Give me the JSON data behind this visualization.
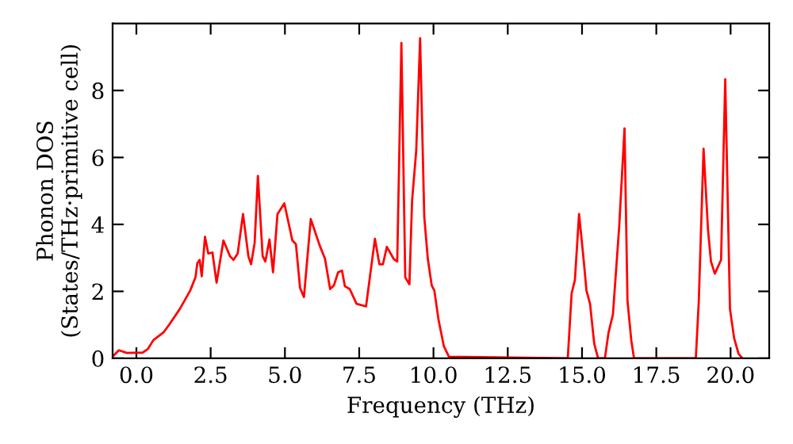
{
  "chart_data": {
    "type": "line",
    "xlabel": "Frequency (THz)",
    "ylabel": "Phonon DOS\n(States/THz·primitive cell)",
    "xlim": [
      -0.8,
      21.3
    ],
    "ylim": [
      0,
      10
    ],
    "xticks": [
      {
        "value": 0,
        "label": "0.0"
      },
      {
        "value": 2.5,
        "label": "2.5"
      },
      {
        "value": 5,
        "label": "5.0"
      },
      {
        "value": 7.5,
        "label": "7.5"
      },
      {
        "value": 10,
        "label": "10.0"
      },
      {
        "value": 12.5,
        "label": "12.5"
      },
      {
        "value": 15,
        "label": "15.0"
      },
      {
        "value": 17.5,
        "label": "17.5"
      },
      {
        "value": 20,
        "label": "20.0"
      }
    ],
    "yticks": [
      0,
      2,
      4,
      6,
      8
    ],
    "grid": false,
    "line_style": "solid",
    "marker": "none",
    "series": [
      {
        "color": "#ff0000",
        "x": [
          -0.8,
          -0.59,
          -0.32,
          0.21,
          0.39,
          0.57,
          0.93,
          1.1,
          1.46,
          1.81,
          1.99,
          2.05,
          2.13,
          2.2,
          2.31,
          2.42,
          2.56,
          2.7,
          2.93,
          3.15,
          3.27,
          3.41,
          3.59,
          3.77,
          3.86,
          3.98,
          4.09,
          4.25,
          4.34,
          4.48,
          4.6,
          4.75,
          4.98,
          5.25,
          5.37,
          5.51,
          5.64,
          5.87,
          6.17,
          6.35,
          6.52,
          6.65,
          6.79,
          6.92,
          7.02,
          7.18,
          7.41,
          7.73,
          8.03,
          8.18,
          8.3,
          8.43,
          8.66,
          8.78,
          8.92,
          9.05,
          9.19,
          9.28,
          9.42,
          9.55,
          9.69,
          9.81,
          9.94,
          10.03,
          10.17,
          10.35,
          10.52,
          14.52,
          14.65,
          14.76,
          14.9,
          15.06,
          15.15,
          15.27,
          15.41,
          15.54,
          15.77,
          15.89,
          16.04,
          16.25,
          16.43,
          16.53,
          16.66,
          16.75,
          18.83,
          18.93,
          19.09,
          19.24,
          19.34,
          19.47,
          19.68,
          19.82,
          19.98,
          20.12,
          20.27,
          20.4
        ],
        "values": [
          0.05,
          0.24,
          0.16,
          0.17,
          0.28,
          0.54,
          0.79,
          1.0,
          1.47,
          2.02,
          2.42,
          2.84,
          2.94,
          2.45,
          3.63,
          3.13,
          3.16,
          2.26,
          3.52,
          3.05,
          2.94,
          3.13,
          4.31,
          3.05,
          2.81,
          3.44,
          5.45,
          3.05,
          2.89,
          3.55,
          2.57,
          4.31,
          4.63,
          3.52,
          3.41,
          2.1,
          1.83,
          4.16,
          3.37,
          2.97,
          2.07,
          2.18,
          2.57,
          2.62,
          2.15,
          2.07,
          1.63,
          1.55,
          3.57,
          2.81,
          2.81,
          3.33,
          2.97,
          2.89,
          9.42,
          2.42,
          2.21,
          4.71,
          6.21,
          9.56,
          4.23,
          2.97,
          2.18,
          2.02,
          1.15,
          0.36,
          0.05,
          0,
          1.94,
          2.34,
          4.31,
          2.89,
          2.02,
          1.63,
          0.44,
          0,
          0,
          0.76,
          1.31,
          3.92,
          6.87,
          1.71,
          0.52,
          0,
          0,
          1.71,
          6.26,
          3.84,
          2.89,
          2.53,
          2.94,
          8.34,
          1.47,
          0.6,
          0.13,
          0
        ]
      }
    ]
  }
}
